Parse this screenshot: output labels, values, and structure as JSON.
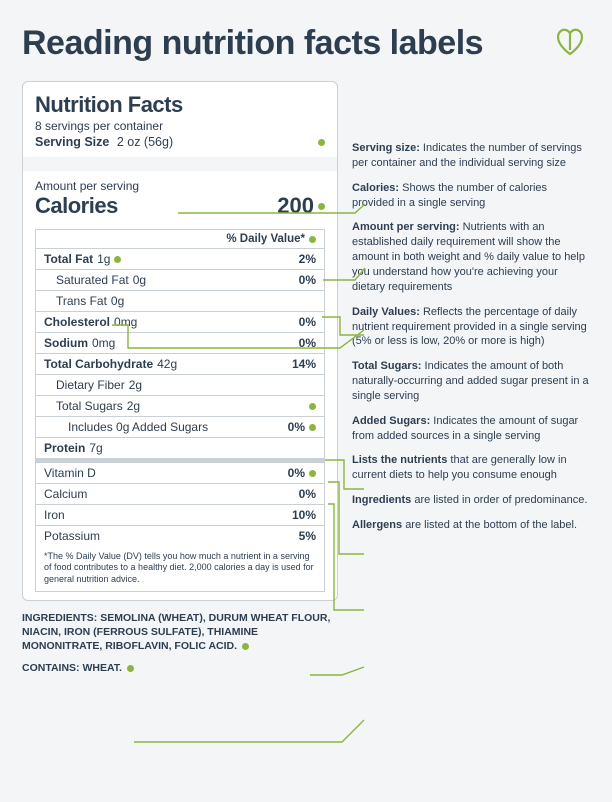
{
  "colors": {
    "bg": "#f3f5f7",
    "text": "#2d3e50",
    "border": "#c9d0d6",
    "accent": "#8bb53f",
    "panel_bg": "#ffffff"
  },
  "title": "Reading nutrition facts labels",
  "label": {
    "heading": "Nutrition Facts",
    "servings": "8 servings per container",
    "serving_size_label": "Serving Size",
    "serving_size_value": "2 oz (56g)",
    "amount_per_serving": "Amount per serving",
    "calories_label": "Calories",
    "calories_value": "200",
    "dv_header": "% Daily Value*",
    "rows": [
      {
        "name": "Total Fat",
        "amount": "1g",
        "pct": "2%",
        "bold": true,
        "indent": 0,
        "dot_left": true
      },
      {
        "name": "Saturated Fat",
        "amount": "0g",
        "pct": "0%",
        "bold": false,
        "indent": 1
      },
      {
        "name": "Trans Fat",
        "amount": "0g",
        "pct": "",
        "bold": false,
        "indent": 1
      },
      {
        "name": "Cholesterol",
        "amount": "0mg",
        "pct": "0%",
        "bold": true,
        "indent": 0
      },
      {
        "name": "Sodium",
        "amount": "0mg",
        "pct": "0%",
        "bold": true,
        "indent": 0
      },
      {
        "name": "Total Carbohydrate",
        "amount": "42g",
        "pct": "14%",
        "bold": true,
        "indent": 0
      },
      {
        "name": "Dietary Fiber",
        "amount": "2g",
        "pct": "",
        "bold": false,
        "indent": 1
      },
      {
        "name": "Total Sugars",
        "amount": "2g",
        "pct": "",
        "bold": false,
        "indent": 1,
        "dot_right": true
      },
      {
        "name": "Includes 0g Added Sugars",
        "amount": "",
        "pct": "0%",
        "bold": false,
        "indent": 2,
        "dot_right_pct": true
      },
      {
        "name": "Protein",
        "amount": "7g",
        "pct": "",
        "bold": true,
        "indent": 0
      },
      {
        "name": "Vitamin D",
        "amount": "",
        "pct": "0%",
        "bold": false,
        "indent": 0,
        "dot_right_pct": true
      },
      {
        "name": "Calcium",
        "amount": "",
        "pct": "0%",
        "bold": false,
        "indent": 0
      },
      {
        "name": "Iron",
        "amount": "",
        "pct": "10%",
        "bold": false,
        "indent": 0
      },
      {
        "name": "Potassium",
        "amount": "",
        "pct": "5%",
        "bold": false,
        "indent": 0
      }
    ],
    "footnote": "*The % Daily Value (DV) tells you how much a nutrient in a serving of food contributes to a healthy diet. 2,000 calories a day is used for general nutrition advice.",
    "ingredients_label": "INGREDIENTS:",
    "ingredients": "SEMOLINA (WHEAT), DURUM WHEAT FLOUR, NIACIN, IRON (FERROUS SULFATE), THIAMINE MONONITRATE, RIBOFLAVIN, FOLIC ACID.",
    "contains_label": "CONTAINS:",
    "contains": "WHEAT."
  },
  "annotations": [
    {
      "title": "Serving size:",
      "text": "Indicates the number of servings per container and the individual serving size"
    },
    {
      "title": "Calories:",
      "text": "Shows the number of calories provided in a single serving"
    },
    {
      "title": "Amount per serving:",
      "text": "Nutrients with an established daily requirement will show the amount in both weight and % daily value to help you understand how you're achieving your dietary requirements"
    },
    {
      "title": "Daily Values:",
      "text": "Reflects the percentage of daily nutrient requirement provided in a single serving (5% or less is low, 20% or more is high)"
    },
    {
      "title": "Total Sugars:",
      "text": "Indicates the amount of both naturally-occurring and added sugar present in a single serving"
    },
    {
      "title": "Added Sugars:",
      "text": "Indicates the amount of sugar from added sources in a single serving"
    },
    {
      "title": "Lists the nutrients",
      "text": "that are generally low in current diets to help you consume enough"
    },
    {
      "title": "Ingredients",
      "text": "are listed in order of predominance."
    },
    {
      "title": "Allergens",
      "text": "are listed at the bottom of the label."
    }
  ],
  "connectors": {
    "stroke": "#8bb53f",
    "stroke_width": 1.4,
    "lines": [
      "M178,213 L355,213 L365,204",
      "M323,280 L355,280 L365,268",
      "M322,317 L340,317 L340,335 L364,335",
      "M112,325 L128,325 L128,348 L340,348 L364,330",
      "M325,460 L344,460 L344,489 L364,489",
      "M328,482 L339,482 L339,554 L364,554",
      "M328,504 L334,504 L334,610 L364,610",
      "M310,675 L342,675 L364,667",
      "M134,742 L342,742 L364,720"
    ]
  }
}
